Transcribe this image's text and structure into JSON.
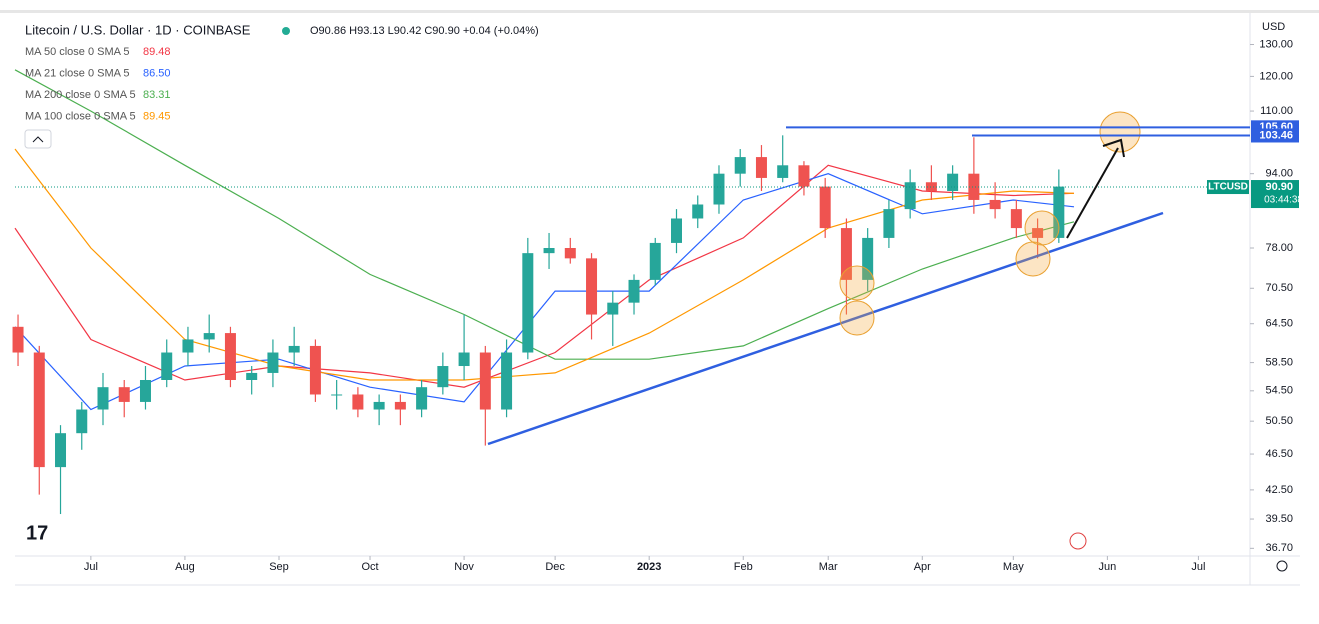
{
  "header": {
    "title": "Litecoin / U.S. Dollar · 1D · COINBASE",
    "ohlc": "O90.86 H93.13 L90.42 C90.90 +0.04 (+0.04%)"
  },
  "chart_data": {
    "type": "candlestick",
    "currency": "USD",
    "log_scale": true,
    "grid": false,
    "up_color": "#26a69a",
    "down_color": "#ef5350",
    "xlim": [
      -25,
      382
    ],
    "xticks": [
      {
        "value": 0,
        "label": "Jul"
      },
      {
        "value": 31,
        "label": "Aug"
      },
      {
        "value": 62,
        "label": "Sep"
      },
      {
        "value": 92,
        "label": "Oct"
      },
      {
        "value": 123,
        "label": "Nov"
      },
      {
        "value": 153,
        "label": "Dec"
      },
      {
        "value": 184,
        "label": "2023"
      },
      {
        "value": 215,
        "label": "Feb"
      },
      {
        "value": 243,
        "label": "Mar"
      },
      {
        "value": 274,
        "label": "Apr"
      },
      {
        "value": 304,
        "label": "May"
      },
      {
        "value": 335,
        "label": "Jun"
      },
      {
        "value": 365,
        "label": "Jul"
      }
    ],
    "ylim": [
      36,
      140
    ],
    "yticks": [
      {
        "value": 130,
        "label": "130.00"
      },
      {
        "value": 120,
        "label": "120.00"
      },
      {
        "value": 110,
        "label": "110.00"
      },
      {
        "value": 94,
        "label": "94.00"
      },
      {
        "value": 78,
        "label": "78.00"
      },
      {
        "value": 70.5,
        "label": "70.50"
      },
      {
        "value": 64.5,
        "label": "64.50"
      },
      {
        "value": 58.5,
        "label": "58.50"
      },
      {
        "value": 54.5,
        "label": "54.50"
      },
      {
        "value": 50.5,
        "label": "50.50"
      },
      {
        "value": 46.5,
        "label": "46.50"
      },
      {
        "value": 42.5,
        "label": "42.50"
      },
      {
        "value": 39.5,
        "label": "39.50"
      },
      {
        "value": 36.7,
        "label": "36.70"
      }
    ],
    "candles": {
      "x": [
        -24,
        -17,
        -10,
        -3,
        4,
        11,
        18,
        25,
        32,
        39,
        46,
        53,
        60,
        67,
        74,
        81,
        88,
        95,
        102,
        109,
        116,
        123,
        130,
        137,
        144,
        151,
        158,
        165,
        172,
        179,
        186,
        193,
        200,
        207,
        214,
        221,
        228,
        235,
        242,
        249,
        256,
        263,
        270,
        277,
        284,
        291,
        298,
        305,
        312,
        319
      ],
      "open": [
        64,
        60,
        45,
        49,
        52,
        55,
        53,
        56,
        60,
        62,
        63,
        56,
        57,
        60,
        61,
        54,
        54,
        52,
        53,
        52,
        55,
        58,
        60,
        52,
        60,
        77,
        78,
        76,
        66,
        68,
        72,
        79,
        84,
        87,
        94,
        98,
        93,
        96,
        91,
        82,
        72,
        80,
        86,
        92,
        90,
        94,
        88,
        86,
        82,
        80
      ],
      "high": [
        66,
        61,
        50,
        53,
        57,
        56,
        58,
        62,
        64,
        66,
        64,
        58,
        62,
        64,
        62,
        56,
        55,
        54,
        54,
        56,
        60,
        66,
        61,
        62,
        80,
        81,
        80,
        77,
        70,
        73,
        80,
        86,
        89,
        96,
        100,
        101,
        103.5,
        97,
        93,
        84,
        82,
        88,
        95,
        96,
        96,
        103,
        92,
        88,
        84,
        95
      ],
      "low": [
        58,
        42,
        40,
        47,
        50,
        51,
        52,
        55,
        58,
        60,
        55,
        54,
        55,
        58,
        53,
        52,
        51,
        50,
        50,
        51,
        54,
        56,
        47.5,
        51,
        59,
        74,
        75,
        62,
        61,
        66,
        71,
        77,
        82,
        85,
        91,
        90,
        92,
        89,
        80,
        66,
        70,
        78,
        84,
        88,
        88,
        85,
        84,
        80,
        76,
        79
      ],
      "close": [
        60,
        45,
        49,
        52,
        55,
        53,
        56,
        60,
        62,
        63,
        56,
        57,
        60,
        61,
        54,
        54,
        52,
        53,
        52,
        55,
        58,
        60,
        52,
        60,
        77,
        78,
        76,
        66,
        68,
        72,
        79,
        84,
        87,
        94,
        98,
        93,
        96,
        91,
        82,
        72,
        80,
        86,
        92,
        90,
        94,
        88,
        86,
        82,
        80,
        91
      ]
    },
    "ma_x": [
      -25,
      0,
      31,
      62,
      92,
      123,
      153,
      184,
      215,
      243,
      274,
      304,
      324
    ],
    "series": [
      {
        "name": "MA 50 close 0 SMA 5",
        "color": "#f23645",
        "value_label": "89.48",
        "values": [
          82,
          62,
          56,
          58,
          57,
          55,
          60,
          72,
          80,
          96,
          90,
          89,
          89.48
        ]
      },
      {
        "name": "MA 21 close 0 SMA 5",
        "color": "#2962ff",
        "value_label": "86.50",
        "values": [
          64,
          52,
          58,
          59,
          55,
          53,
          70,
          70,
          88,
          94,
          85,
          88,
          86.5
        ]
      },
      {
        "name": "MA 200 close 0 SMA 5",
        "color": "#4caf50",
        "value_label": "83.31",
        "values": [
          122,
          110,
          96,
          84,
          73,
          66,
          59,
          59,
          61,
          67,
          74,
          80,
          83.31
        ]
      },
      {
        "name": "MA 100 close 0 SMA 5",
        "color": "#ff9800",
        "value_label": "89.45",
        "values": [
          100,
          78,
          62,
          58,
          56,
          56,
          57,
          63,
          72,
          82,
          88,
          90,
          89.45
        ]
      }
    ],
    "hlines": [
      {
        "value": 105.6,
        "label": "105.60",
        "color": "#2f5fe0"
      },
      {
        "value": 103.46,
        "label": "103.46",
        "color": "#2f5fe0"
      }
    ],
    "last_price": {
      "name": "LTCUSD",
      "value": 90.9,
      "label": "90.90",
      "countdown": "03:44:38",
      "color": "#089981"
    }
  }
}
